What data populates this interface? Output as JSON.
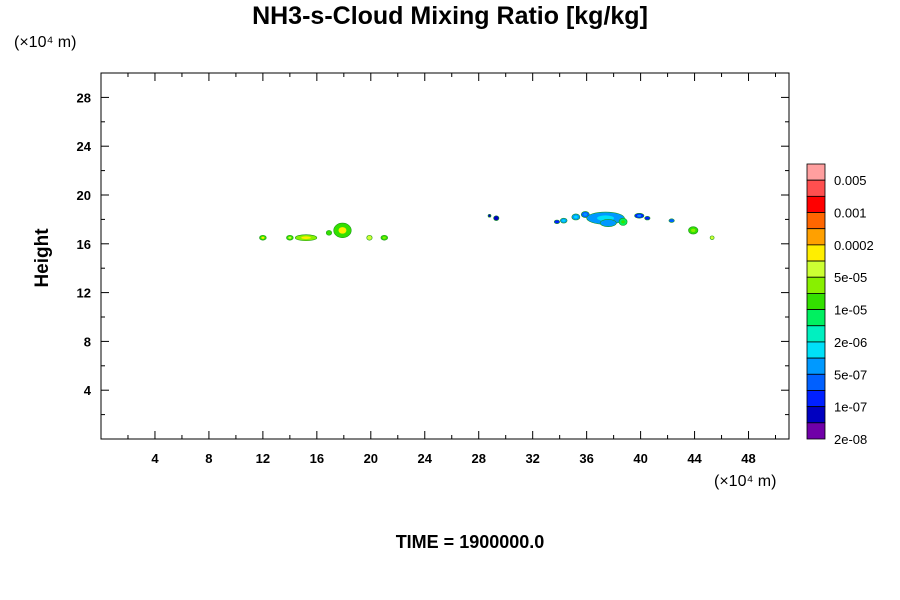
{
  "chart_data": {
    "type": "heatmap",
    "title": "NH3-s-Cloud Mixing Ratio [kg/kg]",
    "ylabel": "Height",
    "xlabel": "",
    "x_unit": "(×10⁴ m)",
    "y_unit": "(×10⁴ m)",
    "xlim": [
      0,
      51
    ],
    "ylim": [
      0,
      30
    ],
    "x_ticks": [
      "4",
      "8",
      "12",
      "16",
      "20",
      "24",
      "28",
      "32",
      "36",
      "40",
      "44",
      "48"
    ],
    "y_ticks": [
      "4",
      "8",
      "12",
      "16",
      "20",
      "24",
      "28"
    ],
    "footer": "TIME = 1900000.0",
    "colorbar": {
      "labels": [
        "0.005",
        "0.001",
        "0.0002",
        "5e-05",
        "1e-05",
        "2e-06",
        "5e-07",
        "1e-07",
        "2e-08"
      ],
      "colors": [
        "#ff9f9f",
        "#ff4f4f",
        "#ff0000",
        "#ff6600",
        "#ffa000",
        "#ffee00",
        "#ccff33",
        "#88f000",
        "#33e000",
        "#00f060",
        "#00f0c0",
        "#00e0f8",
        "#0099ff",
        "#0060ff",
        "#0020ff",
        "#0000c0",
        "#7000a8"
      ]
    },
    "clouds": [
      {
        "x": 12.0,
        "y": 16.5,
        "rx": 0.25,
        "ry": 0.2,
        "fill": "#33e000",
        "core": "#ffee00"
      },
      {
        "x": 14.0,
        "y": 16.5,
        "rx": 0.25,
        "ry": 0.2,
        "fill": "#33e000",
        "core": "#ccff33"
      },
      {
        "x": 15.2,
        "y": 16.5,
        "rx": 0.8,
        "ry": 0.25,
        "fill": "#88f000",
        "core": "#ffee00"
      },
      {
        "x": 16.9,
        "y": 16.9,
        "rx": 0.2,
        "ry": 0.2,
        "fill": "#33e000",
        "core": "#33e000"
      },
      {
        "x": 17.9,
        "y": 17.1,
        "rx": 0.65,
        "ry": 0.6,
        "fill": "#33e000",
        "core": "#ffee00"
      },
      {
        "x": 19.9,
        "y": 16.5,
        "rx": 0.2,
        "ry": 0.2,
        "fill": "#ccff33",
        "core": "#ffee00"
      },
      {
        "x": 21.0,
        "y": 16.5,
        "rx": 0.25,
        "ry": 0.2,
        "fill": "#33e000",
        "core": "#88f000"
      },
      {
        "x": 28.8,
        "y": 18.3,
        "rx": 0.1,
        "ry": 0.1,
        "fill": "#0000c0",
        "core": "#0000c0"
      },
      {
        "x": 29.3,
        "y": 18.1,
        "rx": 0.2,
        "ry": 0.2,
        "fill": "#0000c0",
        "core": "#0000c0"
      },
      {
        "x": 33.8,
        "y": 17.8,
        "rx": 0.2,
        "ry": 0.15,
        "fill": "#0020ff",
        "core": "#0020ff"
      },
      {
        "x": 34.3,
        "y": 17.9,
        "rx": 0.25,
        "ry": 0.2,
        "fill": "#0099ff",
        "core": "#00e0f8"
      },
      {
        "x": 35.2,
        "y": 18.2,
        "rx": 0.3,
        "ry": 0.25,
        "fill": "#0099ff",
        "core": "#00e0f8"
      },
      {
        "x": 35.9,
        "y": 18.4,
        "rx": 0.3,
        "ry": 0.25,
        "fill": "#0060ff",
        "core": "#0099ff"
      },
      {
        "x": 37.4,
        "y": 18.1,
        "rx": 1.4,
        "ry": 0.5,
        "fill": "#0099ff",
        "core": "#00e0f8"
      },
      {
        "x": 37.6,
        "y": 17.7,
        "rx": 0.6,
        "ry": 0.3,
        "fill": "#0099ff",
        "core": "#0099ff"
      },
      {
        "x": 38.7,
        "y": 17.8,
        "rx": 0.3,
        "ry": 0.3,
        "fill": "#00f060",
        "core": "#33e000"
      },
      {
        "x": 39.9,
        "y": 18.3,
        "rx": 0.35,
        "ry": 0.2,
        "fill": "#0020ff",
        "core": "#0099ff"
      },
      {
        "x": 40.5,
        "y": 18.1,
        "rx": 0.2,
        "ry": 0.15,
        "fill": "#0020ff",
        "core": "#0020ff"
      },
      {
        "x": 42.3,
        "y": 17.9,
        "rx": 0.2,
        "ry": 0.15,
        "fill": "#0060ff",
        "core": "#0060ff"
      },
      {
        "x": 43.9,
        "y": 17.1,
        "rx": 0.35,
        "ry": 0.3,
        "fill": "#33e000",
        "core": "#88f000"
      },
      {
        "x": 45.3,
        "y": 16.5,
        "rx": 0.15,
        "ry": 0.15,
        "fill": "#ccff33",
        "core": "#ffee00"
      }
    ]
  }
}
